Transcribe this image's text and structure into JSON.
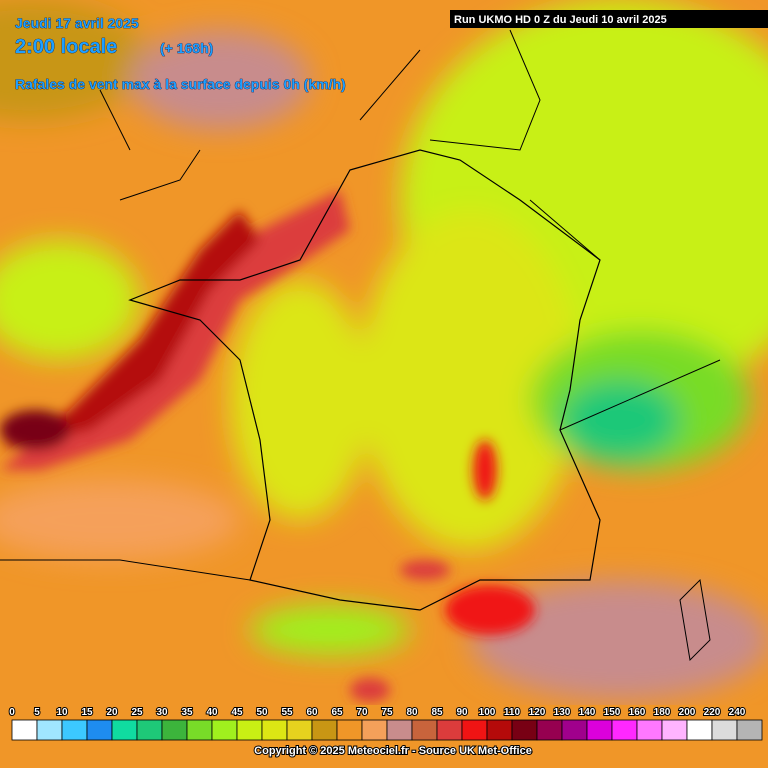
{
  "header": {
    "date": "Jeudi 17 avril 2025",
    "time": "2:00 locale",
    "lead": "(+ 168h)",
    "subtitle": "Rafales de vent max à la surface depuis 0h (km/h)",
    "run": "Run UKMO HD 0 Z du Jeudi 10 avril 2025"
  },
  "legend": [
    {
      "value": 0,
      "color": "#ffffff"
    },
    {
      "value": 5,
      "color": "#a0e6ff"
    },
    {
      "value": 10,
      "color": "#3cc8ff"
    },
    {
      "value": 15,
      "color": "#1e8cf0"
    },
    {
      "value": 20,
      "color": "#10dca0"
    },
    {
      "value": 25,
      "color": "#1ec878"
    },
    {
      "value": 30,
      "color": "#3cb43c"
    },
    {
      "value": 35,
      "color": "#78dc28"
    },
    {
      "value": 40,
      "color": "#a0f01e"
    },
    {
      "value": 45,
      "color": "#c8f014"
    },
    {
      "value": 50,
      "color": "#dce614"
    },
    {
      "value": 55,
      "color": "#e6d21e"
    },
    {
      "value": 60,
      "color": "#c89614"
    },
    {
      "value": 65,
      "color": "#f09628"
    },
    {
      "value": 70,
      "color": "#f5a05a"
    },
    {
      "value": 75,
      "color": "#c88c8c"
    },
    {
      "value": 80,
      "color": "#c8643c"
    },
    {
      "value": 85,
      "color": "#dc3c3c"
    },
    {
      "value": 90,
      "color": "#f01414"
    },
    {
      "value": 100,
      "color": "#b40a0a"
    },
    {
      "value": 110,
      "color": "#780014"
    },
    {
      "value": 120,
      "color": "#960050"
    },
    {
      "value": 130,
      "color": "#a0008c"
    },
    {
      "value": 140,
      "color": "#dc00dc"
    },
    {
      "value": 150,
      "color": "#ff28ff"
    },
    {
      "value": 160,
      "color": "#ff78ff"
    },
    {
      "value": 180,
      "color": "#ffb4ff"
    },
    {
      "value": 200,
      "color": "#ffffff"
    },
    {
      "value": 220,
      "color": "#dcdcdc"
    },
    {
      "value": 240,
      "color": "#b4b4b4"
    }
  ],
  "footer": {
    "copyright": "Copyright © 2025 Meteociel.fr - Source UK Met-Office"
  }
}
